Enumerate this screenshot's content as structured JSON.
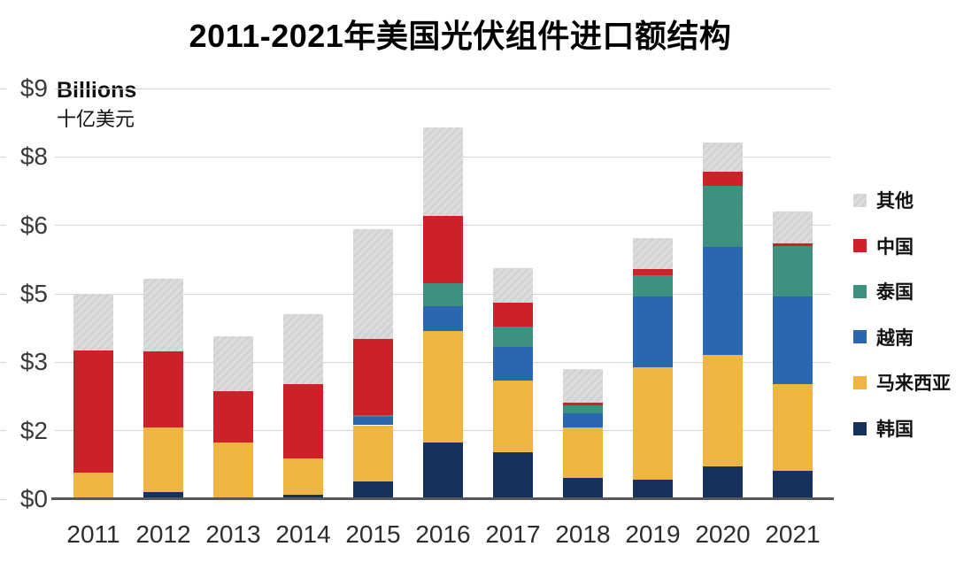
{
  "title": "2011-2021年美国光伏组件进口额结构",
  "y_axis": {
    "unit_label_en": "Billions",
    "unit_label_zh": "十亿美元",
    "max": 9,
    "ticks": [
      {
        "label": "$0",
        "value": 0
      },
      {
        "label": "$2",
        "value": 1.5
      },
      {
        "label": "$3",
        "value": 3
      },
      {
        "label": "$5",
        "value": 4.5
      },
      {
        "label": "$6",
        "value": 6
      },
      {
        "label": "$8",
        "value": 7.5
      },
      {
        "label": "$9",
        "value": 9
      }
    ]
  },
  "chart_data": {
    "type": "bar",
    "stacked": true,
    "title": "2011-2021年美国光伏组件进口额结构",
    "ylabel": "Billions 十亿美元",
    "ylim": [
      0,
      9
    ],
    "grid": true,
    "legend_position": "right",
    "categories": [
      "2011",
      "2012",
      "2013",
      "2014",
      "2015",
      "2016",
      "2017",
      "2018",
      "2019",
      "2020",
      "2021"
    ],
    "series": [
      {
        "id": "korea",
        "name": "韩国",
        "color": "#14325c",
        "textured": false,
        "values": [
          0.04,
          0.15,
          0.04,
          0.1,
          0.38,
          1.25,
          1.03,
          0.47,
          0.43,
          0.71,
          0.62
        ]
      },
      {
        "id": "malaysia",
        "name": "马来西亚",
        "color": "#f0b440",
        "textured": false,
        "values": [
          0.55,
          1.43,
          1.2,
          0.8,
          1.24,
          2.44,
          1.57,
          1.1,
          2.47,
          2.45,
          1.91
        ]
      },
      {
        "id": "vietnam",
        "name": "越南",
        "color": "#2b66b1",
        "textured": false,
        "values": [
          0,
          0,
          0,
          0,
          0.18,
          0.54,
          0.73,
          0.31,
          1.55,
          2.36,
          1.91
        ]
      },
      {
        "id": "thailand",
        "name": "泰国",
        "color": "#3e9180",
        "textured": false,
        "values": [
          0,
          0,
          0,
          0,
          0.05,
          0.51,
          0.45,
          0.17,
          0.46,
          1.34,
          1.1
        ]
      },
      {
        "id": "china",
        "name": "中国",
        "color": "#cc2128",
        "textured": false,
        "values": [
          2.67,
          1.65,
          1.12,
          1.62,
          1.67,
          1.46,
          0.53,
          0.07,
          0.13,
          0.31,
          0.07
        ]
      },
      {
        "id": "other",
        "name": "其他",
        "color": "#d9d9d9",
        "textured": true,
        "values": [
          1.24,
          1.6,
          1.21,
          1.54,
          2.39,
          1.95,
          0.75,
          0.73,
          0.69,
          0.65,
          0.69
        ]
      }
    ],
    "totals": [
      4.49,
      4.83,
      3.57,
      4.06,
      5.91,
      8.15,
      5.06,
      2.85,
      5.73,
      7.82,
      6.3
    ]
  },
  "colors": {
    "baseline": "#55575a",
    "gridline": "#d4d4d4",
    "title_text": "#000000",
    "axis_text": "#3a3a3a"
  }
}
